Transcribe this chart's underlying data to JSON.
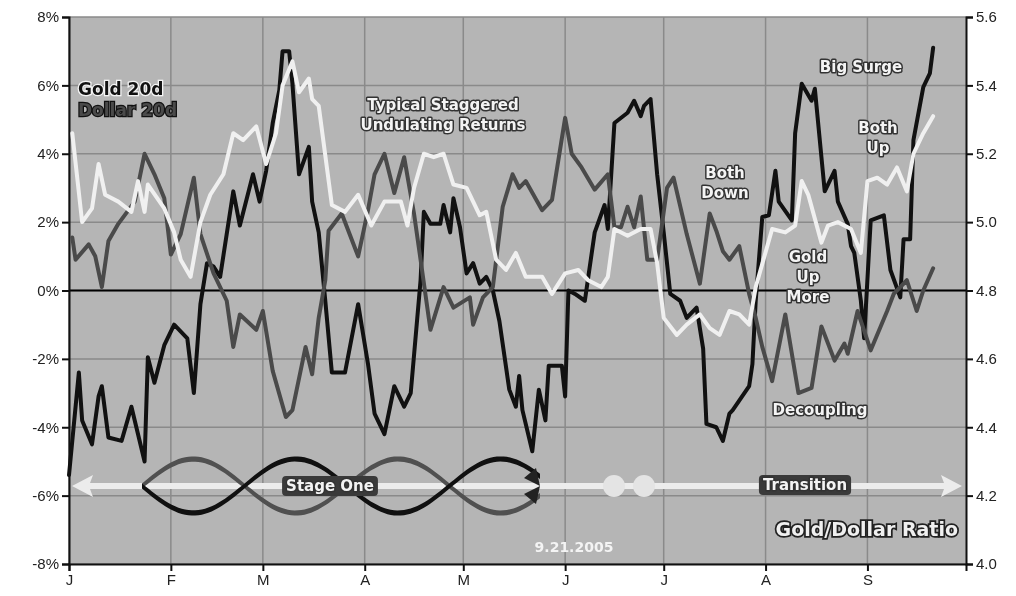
{
  "chart_data": {
    "type": "line",
    "categories": [
      "J",
      null,
      null,
      null,
      null,
      null,
      null,
      null,
      null,
      null,
      null,
      null,
      null,
      null,
      null,
      null,
      null,
      null,
      null,
      null,
      null,
      null,
      null,
      null,
      null,
      null,
      null,
      null,
      null,
      null,
      null,
      "F",
      null,
      null,
      null,
      null,
      null,
      null,
      null,
      null,
      null,
      null,
      null,
      null,
      null,
      null,
      null,
      null,
      null,
      null,
      null,
      null,
      null,
      null,
      null,
      null,
      null,
      null,
      null,
      "M",
      null,
      null,
      null,
      null,
      null,
      null,
      null,
      null,
      null,
      null,
      null,
      null,
      null,
      null,
      null,
      null,
      null,
      null,
      null,
      null,
      null,
      null,
      null,
      null,
      null,
      null,
      null,
      null,
      null,
      null,
      "A",
      null,
      null,
      null,
      null,
      null,
      null,
      null,
      null,
      null,
      null,
      null,
      null,
      null,
      null,
      null,
      null,
      null,
      null,
      null,
      null,
      null,
      null,
      null,
      null,
      null,
      null,
      null,
      null,
      null,
      "M",
      null,
      null,
      null,
      null,
      null,
      null,
      null,
      null,
      null,
      null,
      null,
      null,
      null,
      null,
      null,
      null,
      null,
      null,
      null,
      null,
      null,
      null,
      null,
      null,
      null,
      null,
      null,
      null,
      null,
      null,
      "J",
      null,
      null,
      null,
      null,
      null,
      null,
      null,
      null,
      null,
      null,
      null,
      null,
      null,
      null,
      null,
      null,
      null,
      null,
      null,
      null,
      null,
      null,
      null,
      null,
      null,
      null,
      null,
      null,
      null,
      "J",
      null,
      null,
      null,
      null,
      null,
      null,
      null,
      null,
      null,
      null,
      null,
      null,
      null,
      null,
      null,
      null,
      null,
      null,
      null,
      null,
      null,
      null,
      null,
      null,
      null,
      null,
      null,
      null,
      null,
      null,
      "A",
      null,
      null,
      null,
      null,
      null,
      null,
      null,
      null,
      null,
      null,
      null,
      null,
      null,
      null,
      null,
      null,
      null,
      null,
      null,
      null,
      null,
      null,
      null,
      null,
      null,
      null,
      null,
      null,
      null,
      null,
      "S",
      null,
      null,
      null,
      null,
      null,
      null,
      null,
      null,
      null,
      null,
      null,
      null,
      null,
      null,
      null,
      null,
      null,
      null,
      null,
      null,
      null,
      null,
      null,
      null,
      null,
      null,
      null,
      null,
      null,
      null
    ],
    "ylim": [
      -8,
      8
    ],
    "yticks": [
      {
        "value": -8,
        "label": "-8%"
      },
      {
        "value": -6,
        "label": "-6%"
      },
      {
        "value": -4,
        "label": "-4%"
      },
      {
        "value": -2,
        "label": "-2%"
      },
      {
        "value": 0,
        "label": "0%"
      },
      {
        "value": 2,
        "label": "2%"
      },
      {
        "value": 4,
        "label": "4%"
      },
      {
        "value": 6,
        "label": "6%"
      },
      {
        "value": 8,
        "label": "8%"
      }
    ],
    "y2label": "Gold/Dollar Ratio",
    "y2lim": [
      4.0,
      5.6
    ],
    "y2ticks": [
      {
        "value": 4.0,
        "label": "4.0"
      },
      4.2,
      4.4,
      4.6,
      4.8,
      {
        "value": 5.0,
        "label": "5.0"
      },
      5.2,
      5.4,
      5.6
    ],
    "grid": true,
    "legend": "top left",
    "ref_lines": [
      {
        "axis": "y",
        "value": 0,
        "color": "#000000"
      }
    ],
    "series": [
      {
        "name": "Gold 20d",
        "color": "#111111",
        "values": [
          -5.4,
          null,
          null,
          -2.4,
          -3.8,
          null,
          null,
          -4.5,
          null,
          -3.1,
          -2.8,
          null,
          -4.3,
          null,
          null,
          null,
          -4.4,
          null,
          null,
          -3.4,
          null,
          null,
          null,
          -5.0,
          -1.95,
          null,
          -2.7,
          null,
          null,
          -1.6,
          null,
          null,
          -1.0,
          null,
          null,
          null,
          -1.4,
          null,
          -3.0,
          null,
          -0.4,
          null,
          0.8,
          null,
          0.7,
          null,
          0.4,
          null,
          null,
          null,
          2.9,
          null,
          1.9,
          null,
          null,
          null,
          3.4,
          null,
          2.6,
          null,
          3.5,
          null,
          4.9,
          null,
          5.85,
          7.0,
          null,
          7.0,
          6.05,
          null,
          3.4,
          null,
          null,
          4.2,
          2.6,
          null,
          1.7,
          null,
          -0.3,
          null,
          -2.4,
          null,
          null,
          null,
          -2.4,
          null,
          null,
          null,
          -0.4,
          null,
          null,
          -2.15,
          null,
          -3.6,
          null,
          null,
          -4.2,
          null,
          null,
          -2.8,
          null,
          null,
          -3.4,
          null,
          -3.0,
          null,
          null,
          0.3,
          2.3,
          null,
          1.95,
          null,
          null,
          1.95,
          2.5,
          null,
          1.7,
          2.7,
          null,
          1.85,
          null,
          0.5,
          null,
          0.8,
          null,
          0.2,
          null,
          0.4,
          null,
          0.0,
          null,
          -0.9,
          null,
          null,
          -2.9,
          null,
          -3.4,
          -2.5,
          -3.5,
          null,
          null,
          -4.7,
          null,
          -2.9,
          null,
          -3.8,
          -2.2,
          null,
          null,
          null,
          -2.2,
          -3.1,
          0.0,
          null,
          -0.1,
          null,
          null,
          -0.3,
          null,
          null,
          1.7,
          null,
          null,
          2.5,
          1.8,
          null,
          4.9,
          null,
          null,
          null,
          5.2,
          null,
          5.55,
          null,
          5.1,
          5.4,
          null,
          5.6,
          null,
          3.4,
          null,
          1.7,
          null,
          -0.1,
          null,
          null,
          -0.3,
          null,
          -0.8,
          null,
          null,
          -0.5,
          null,
          -1.7,
          -3.9,
          null,
          null,
          -4.0,
          null,
          -4.4,
          null,
          -3.6,
          -3.5,
          null,
          null,
          null,
          null,
          -2.8,
          -2.15,
          -0.3,
          null,
          2.15,
          null,
          2.2,
          null,
          3.5,
          2.6,
          null,
          null,
          null,
          2.05,
          4.6,
          null,
          6.05,
          null,
          null,
          5.55,
          5.9,
          null,
          3.9,
          2.9,
          null,
          null,
          3.5,
          2.6,
          null,
          null,
          1.95,
          1.3,
          1.1,
          null,
          -0.3,
          -1.4,
          null,
          2.05,
          null,
          null,
          null,
          2.2,
          null,
          0.6,
          null,
          null,
          -0.2,
          1.5,
          null,
          1.5,
          4.4,
          null,
          null,
          5.95,
          null,
          6.35,
          7.1,
          null,
          null,
          null,
          null,
          null,
          null,
          null,
          null,
          null,
          null
        ]
      },
      {
        "name": "Dollar 20d",
        "color": "#4a4a4a",
        "values": [
          null,
          1.55,
          0.9,
          null,
          null,
          null,
          1.35,
          null,
          1.0,
          null,
          0.1,
          null,
          1.45,
          null,
          null,
          1.95,
          null,
          null,
          null,
          null,
          2.6,
          null,
          null,
          4.0,
          null,
          null,
          3.4,
          null,
          null,
          2.7,
          null,
          1.05,
          null,
          null,
          1.65,
          null,
          null,
          null,
          3.3,
          null,
          1.65,
          null,
          null,
          null,
          0.5,
          null,
          null,
          null,
          -0.3,
          null,
          -1.65,
          null,
          -0.7,
          null,
          null,
          null,
          null,
          -1.15,
          null,
          -0.6,
          null,
          null,
          -2.35,
          null,
          null,
          null,
          -3.7,
          null,
          -3.5,
          null,
          null,
          null,
          -1.65,
          null,
          -2.45,
          null,
          -0.8,
          null,
          0.3,
          1.75,
          null,
          null,
          null,
          2.25,
          null,
          null,
          null,
          1.25,
          1.0,
          null,
          null,
          2.35,
          null,
          3.4,
          null,
          null,
          4.0,
          null,
          null,
          2.85,
          null,
          null,
          3.9,
          null,
          null,
          2.25,
          null,
          0.9,
          null,
          null,
          -1.15,
          null,
          null,
          null,
          0.1,
          null,
          null,
          -0.5,
          null,
          null,
          null,
          null,
          -0.2,
          -1.0,
          null,
          null,
          -0.2,
          null,
          null,
          0.1,
          null,
          null,
          2.45,
          null,
          null,
          3.4,
          null,
          3.0,
          null,
          3.2,
          null,
          null,
          null,
          null,
          2.35,
          null,
          null,
          2.65,
          null,
          null,
          null,
          5.05,
          null,
          4.0,
          null,
          null,
          3.6,
          null,
          null,
          null,
          2.95,
          null,
          null,
          null,
          3.4,
          null,
          1.85,
          null,
          1.85,
          null,
          2.45,
          null,
          1.85,
          null,
          2.75,
          null,
          0.9,
          null,
          null,
          0.9,
          null,
          null,
          3.0,
          null,
          3.3,
          null,
          null,
          null,
          1.65,
          null,
          null,
          null,
          0.2,
          null,
          null,
          2.25,
          null,
          1.75,
          null,
          1.15,
          null,
          0.9,
          null,
          null,
          1.3,
          null,
          null,
          -0.1,
          null,
          -0.8,
          null,
          -1.65,
          null,
          null,
          -2.65,
          null,
          null,
          null,
          -0.7,
          null,
          null,
          null,
          -3.0,
          null,
          null,
          null,
          -2.85,
          null,
          null,
          -1.05,
          null,
          null,
          null,
          -2.05,
          null,
          null,
          -1.55,
          -1.85,
          null,
          null,
          -0.6,
          null,
          null,
          null,
          -1.75,
          null,
          null,
          null,
          null,
          -0.6,
          null,
          -0.1,
          null,
          null,
          null,
          0.3,
          null,
          null,
          -0.6,
          null,
          0.0,
          null,
          null,
          0.65,
          null,
          null,
          null,
          null,
          null,
          null,
          null,
          null,
          null,
          null
        ]
      },
      {
        "color": "#f0f0f0",
        "axis": "y2",
        "values": [
          null,
          5.26,
          null,
          null,
          5.0,
          null,
          null,
          5.04,
          null,
          5.17,
          null,
          5.08,
          null,
          null,
          null,
          5.06,
          null,
          null,
          null,
          5.03,
          null,
          5.12,
          null,
          5.03,
          5.11,
          null,
          null,
          null,
          null,
          5.04,
          null,
          null,
          4.97,
          null,
          4.89,
          null,
          null,
          4.84,
          null,
          null,
          5.0,
          null,
          null,
          5.08,
          null,
          null,
          null,
          5.14,
          null,
          null,
          5.26,
          null,
          null,
          5.24,
          null,
          null,
          null,
          5.28,
          null,
          null,
          5.17,
          null,
          null,
          5.26,
          null,
          5.4,
          null,
          null,
          5.47,
          null,
          5.38,
          null,
          null,
          5.42,
          5.36,
          null,
          5.34,
          null,
          null,
          null,
          5.05,
          null,
          null,
          null,
          5.03,
          null,
          null,
          null,
          5.08,
          null,
          null,
          null,
          4.99,
          null,
          null,
          null,
          5.06,
          null,
          null,
          null,
          null,
          5.06,
          null,
          4.99,
          null,
          5.1,
          null,
          null,
          5.2,
          null,
          null,
          5.19,
          null,
          null,
          5.2,
          null,
          null,
          5.11,
          null,
          null,
          null,
          5.1,
          null,
          5.06,
          null,
          5.02,
          null,
          5.03,
          null,
          null,
          4.89,
          null,
          null,
          4.86,
          null,
          null,
          4.91,
          null,
          null,
          4.84,
          null,
          null,
          null,
          null,
          4.84,
          null,
          null,
          4.79,
          null,
          null,
          null,
          4.85,
          null,
          null,
          null,
          4.86,
          null,
          null,
          4.83,
          null,
          null,
          null,
          4.81,
          null,
          4.84,
          null,
          4.98,
          null,
          null,
          null,
          4.96,
          null,
          null,
          null,
          4.98,
          null,
          null,
          4.98,
          null,
          4.88,
          null,
          4.72,
          null,
          null,
          null,
          4.67,
          null,
          null,
          4.7,
          null,
          null,
          null,
          4.73,
          null,
          null,
          4.69,
          null,
          null,
          4.67,
          null,
          null,
          4.74,
          null,
          null,
          4.73,
          null,
          null,
          4.7,
          null,
          4.81,
          null,
          null,
          null,
          null,
          4.98,
          null,
          null,
          null,
          4.97,
          null,
          null,
          4.99,
          null,
          5.12,
          null,
          5.08,
          null,
          null,
          null,
          4.94,
          null,
          4.99,
          null,
          null,
          5.0,
          null,
          null,
          null,
          4.98,
          null,
          null,
          4.91,
          null,
          5.12,
          null,
          null,
          5.13,
          null,
          null,
          5.11,
          null,
          null,
          5.16,
          null,
          null,
          5.09,
          null,
          5.2,
          null,
          null,
          5.26,
          null,
          null,
          5.31,
          null,
          null,
          null,
          null,
          null,
          null,
          null,
          null,
          null,
          null
        ]
      }
    ],
    "annotations": [
      "Typical Staggered Undulating Returns",
      "Big Surge",
      "Both Up",
      "Both Down",
      "Gold Up More",
      "Decoupling",
      "Stage One",
      "Transition",
      "9.21.2005"
    ]
  }
}
